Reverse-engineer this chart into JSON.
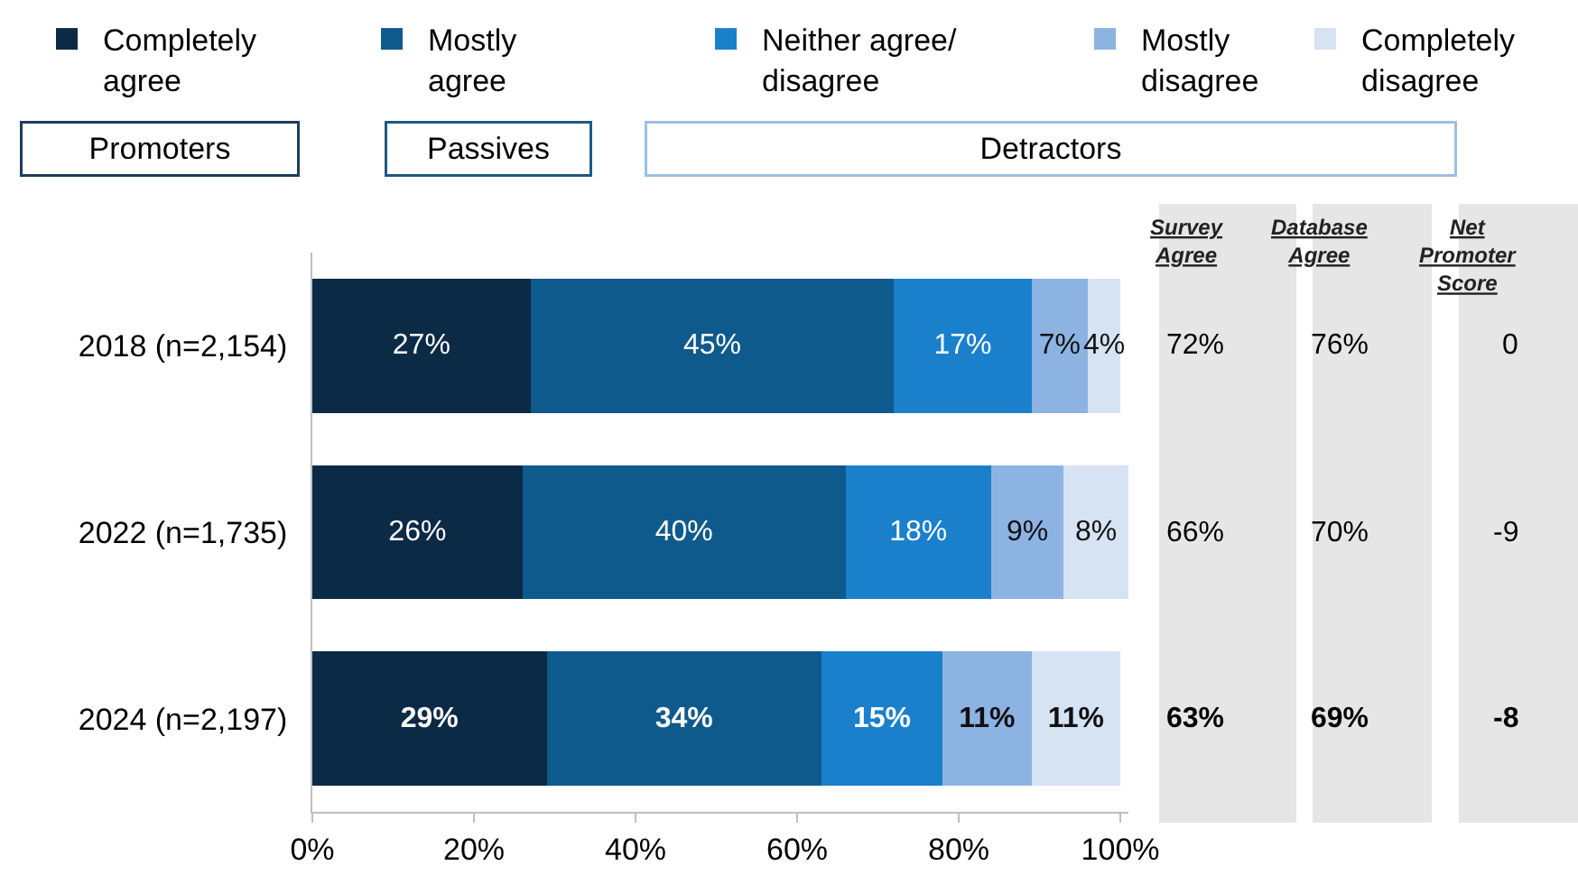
{
  "chart_data": {
    "type": "bar",
    "orientation": "horizontal",
    "stacked": true,
    "categories": [
      "2018 (n=2,154)",
      "2022 (n=1,735)",
      "2024 (n=2,197)"
    ],
    "series": [
      {
        "name": "Completely agree",
        "color": "#0b2a45",
        "values": [
          27,
          26,
          29
        ],
        "value_labels": [
          "27%",
          "26%",
          "29%"
        ]
      },
      {
        "name": "Mostly agree",
        "color": "#0f5a8c",
        "values": [
          45,
          40,
          34
        ],
        "value_labels": [
          "45%",
          "40%",
          "34%"
        ]
      },
      {
        "name": "Neither agree/disagree",
        "color": "#1a80cc",
        "values": [
          17,
          18,
          15
        ],
        "value_labels": [
          "17%",
          "18%",
          "15%"
        ]
      },
      {
        "name": "Mostly disagree",
        "color": "#8db3e2",
        "values": [
          7,
          9,
          11
        ],
        "value_labels": [
          "7%",
          "9%",
          "11%"
        ]
      },
      {
        "name": "Completely disagree",
        "color": "#d6e3f3",
        "values": [
          4,
          8,
          11
        ],
        "value_labels": [
          "4%",
          "8%",
          "11%"
        ]
      }
    ],
    "xlim": [
      0,
      101
    ],
    "xticks": [
      {
        "value": 0,
        "label": "0%"
      },
      {
        "value": 20,
        "label": "20%"
      },
      {
        "value": 40,
        "label": "40%"
      },
      {
        "value": 60,
        "label": "60%"
      },
      {
        "value": 80,
        "label": "80%"
      },
      {
        "value": 100,
        "label": "100%"
      }
    ],
    "grid": false,
    "legend": "top",
    "annotations": [
      "Promoters",
      "Passives",
      "Detractors",
      "Survey Agree",
      "Database Agree",
      "Net Promoter Score",
      "72%",
      "76%",
      "0",
      "66%",
      "70%",
      "-9",
      "63%",
      "69%",
      "-8"
    ]
  }
}
